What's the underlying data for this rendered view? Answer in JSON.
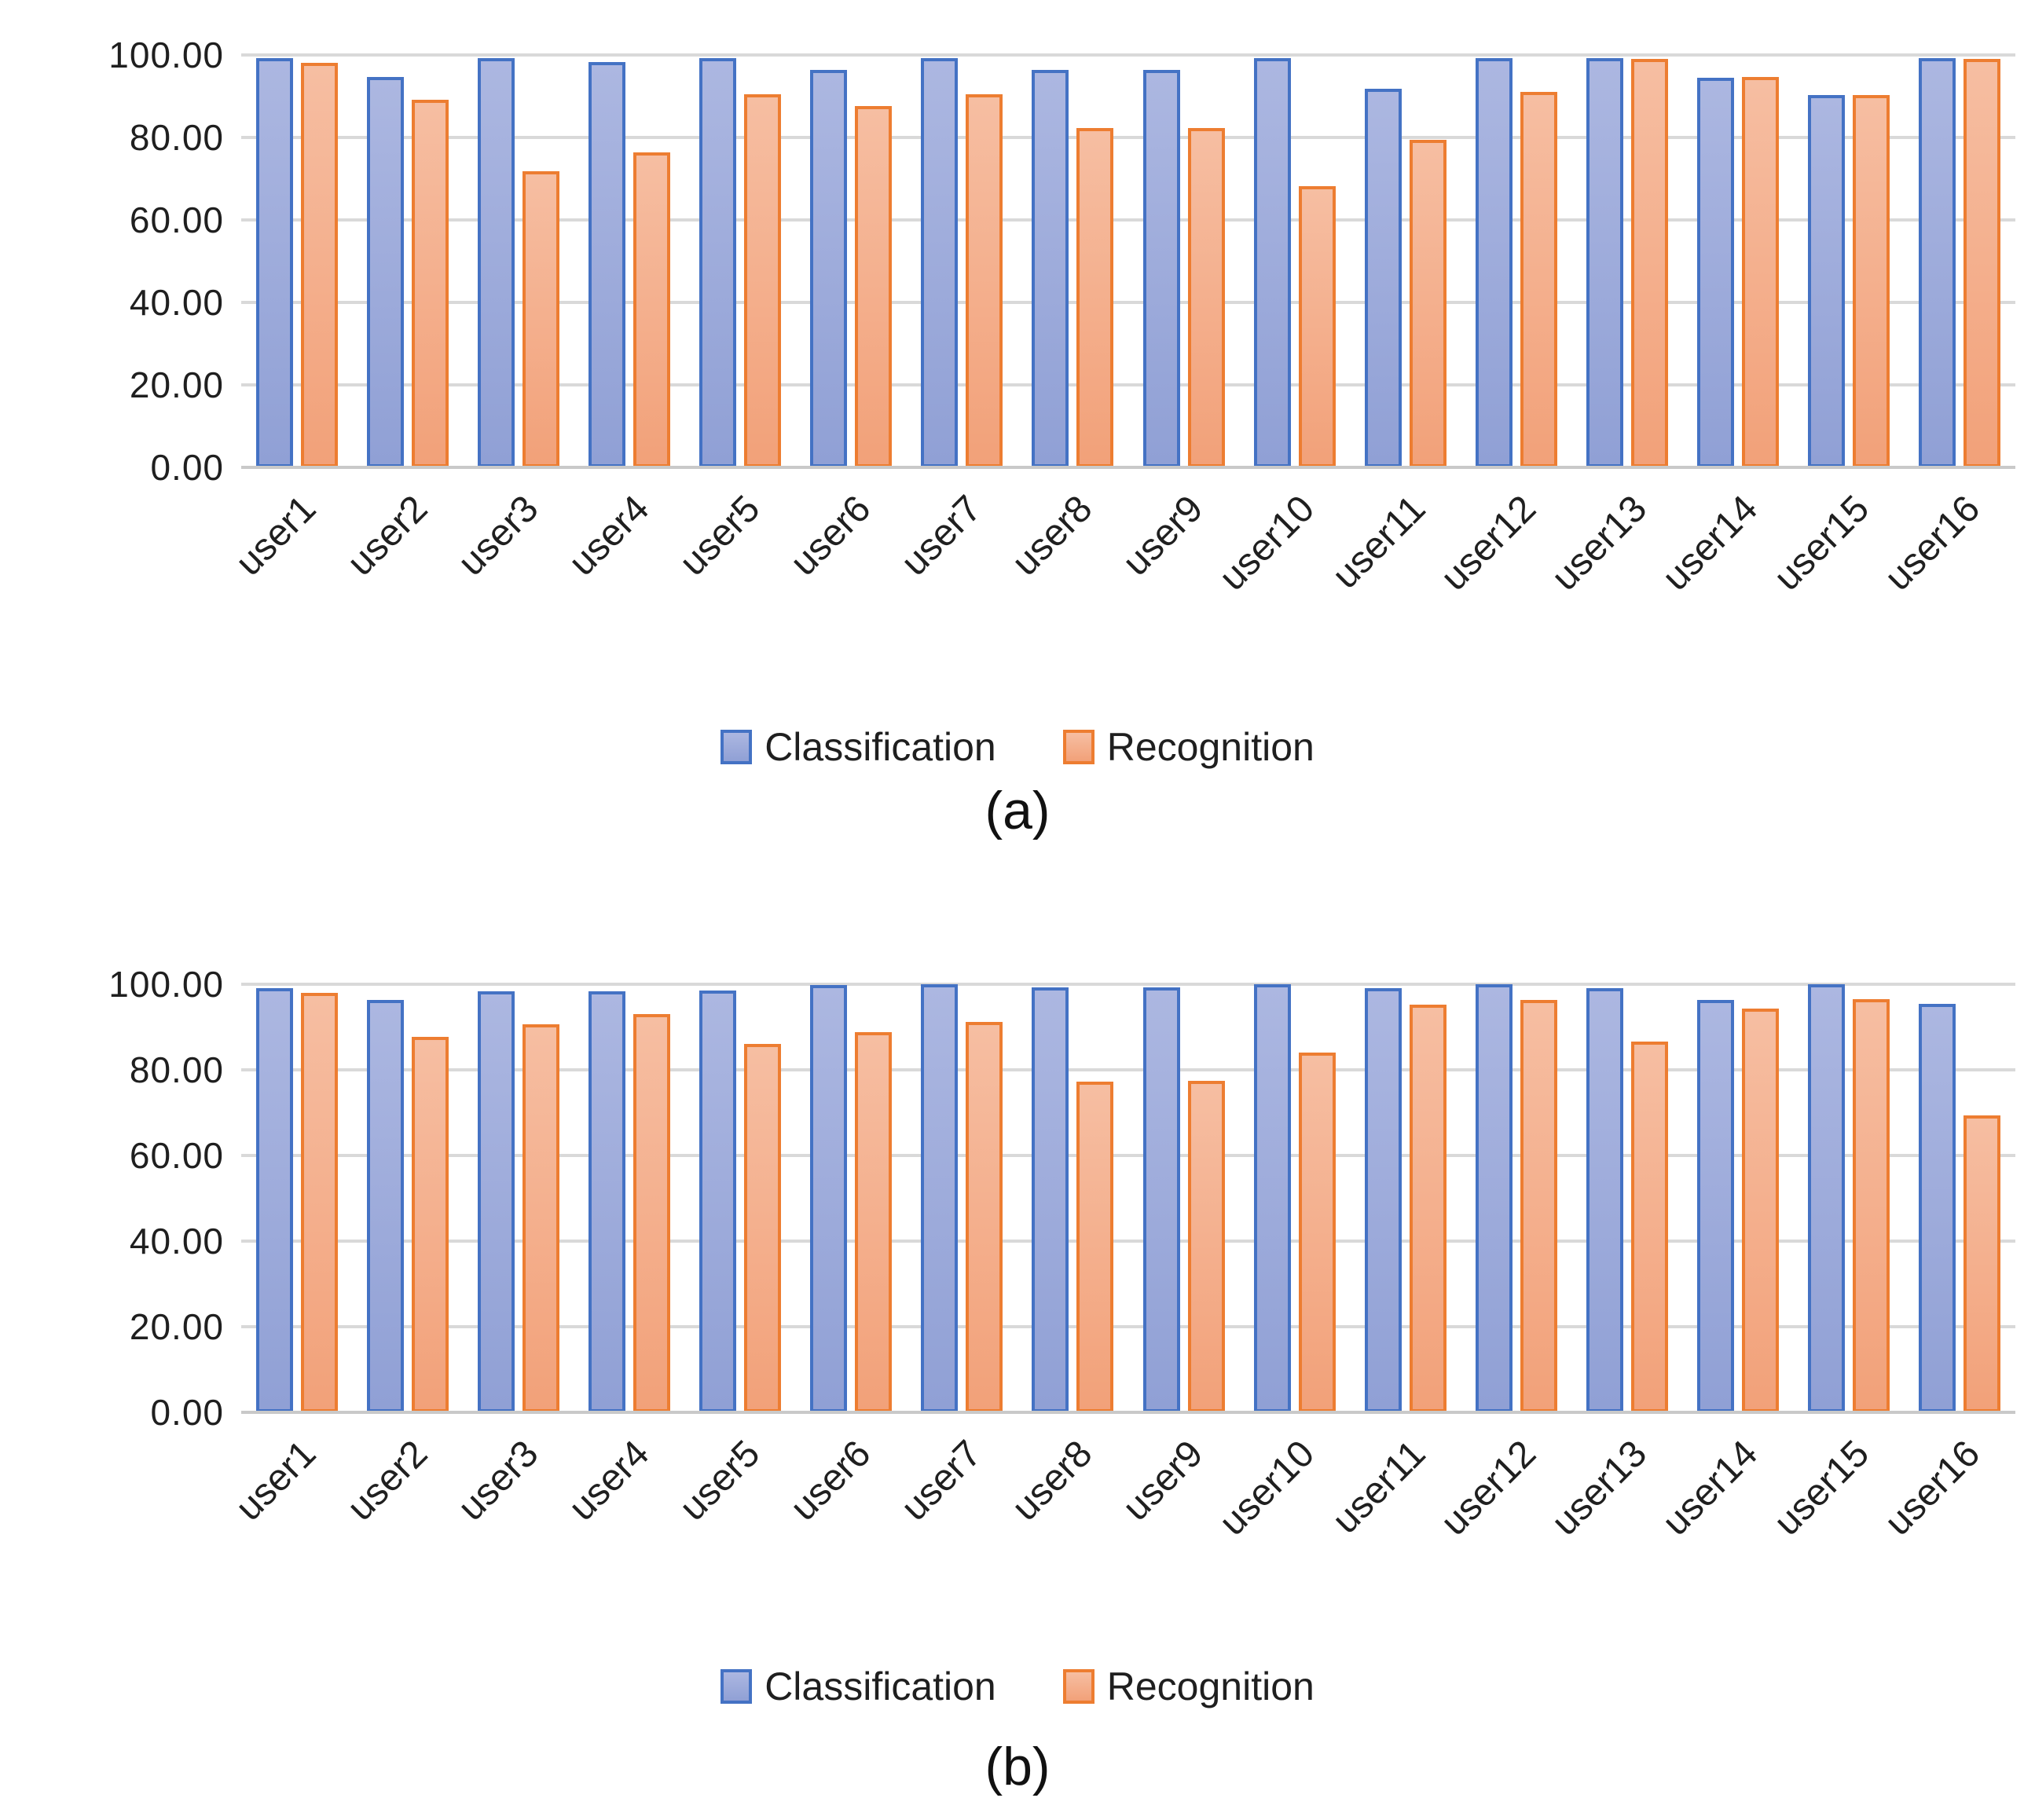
{
  "page": {
    "background": "#ffffff",
    "text_color": "#1f1f1f",
    "gridline_color": "#d9d9d9",
    "axis_line_color": "#c9c9c9"
  },
  "chart_data": [
    {
      "id": "a",
      "type": "bar",
      "caption": "(a)",
      "categories": [
        "user1",
        "user2",
        "user3",
        "user4",
        "user5",
        "user6",
        "user7",
        "user8",
        "user9",
        "user10",
        "user11",
        "user12",
        "user13",
        "user14",
        "user15",
        "user16"
      ],
      "yticks": [
        {
          "label": "100.00",
          "value": 100
        },
        {
          "label": "80.00",
          "value": 80
        },
        {
          "label": "60.00",
          "value": 60
        },
        {
          "label": "40.00",
          "value": 40
        },
        {
          "label": "20.00",
          "value": 20
        },
        {
          "label": "0.00",
          "value": 0
        }
      ],
      "ylim": [
        0,
        100
      ],
      "grid": true,
      "legend_position": "bottom",
      "xlabel": "",
      "ylabel": "",
      "series": [
        {
          "name": "Classification",
          "border": "#4472C4",
          "fill_top": "#ACB7E1",
          "fill_bottom": "#90A0D5",
          "values": [
            99.3,
            94.7,
            99.3,
            98.2,
            99.2,
            96.4,
            99.2,
            96.4,
            96.4,
            99.2,
            91.9,
            99.2,
            99.2,
            94.5,
            90.2,
            99.2
          ]
        },
        {
          "name": "Recognition",
          "border": "#ED7D31",
          "fill_top": "#F6BEA2",
          "fill_bottom": "#F2A179",
          "values": [
            98.1,
            89.2,
            71.9,
            76.3,
            90.4,
            87.7,
            90.4,
            82.3,
            82.3,
            68.1,
            79.4,
            91.1,
            99.0,
            94.7,
            90.3,
            99.0
          ]
        }
      ]
    },
    {
      "id": "b",
      "type": "bar",
      "caption": "(b)",
      "categories": [
        "user1",
        "user2",
        "user3",
        "user4",
        "user5",
        "user6",
        "user7",
        "user8",
        "user9",
        "user10",
        "user11",
        "user12",
        "user13",
        "user14",
        "user15",
        "user16"
      ],
      "yticks": [
        {
          "label": "100.00",
          "value": 100
        },
        {
          "label": "80.00",
          "value": 80
        },
        {
          "label": "60.00",
          "value": 60
        },
        {
          "label": "40.00",
          "value": 40
        },
        {
          "label": "20.00",
          "value": 20
        },
        {
          "label": "0.00",
          "value": 0
        }
      ],
      "ylim": [
        0,
        100
      ],
      "grid": true,
      "legend_position": "bottom",
      "xlabel": "",
      "ylabel": "",
      "series": [
        {
          "name": "Classification",
          "border": "#4472C4",
          "fill_top": "#ACB7E1",
          "fill_bottom": "#90A0D5",
          "values": [
            99.1,
            96.4,
            98.4,
            98.3,
            98.6,
            99.9,
            100.0,
            99.2,
            99.2,
            100.0,
            99.1,
            100.0,
            99.0,
            96.4,
            100.0,
            95.4
          ]
        },
        {
          "name": "Recognition",
          "border": "#ED7D31",
          "fill_top": "#F6BEA2",
          "fill_bottom": "#F2A179",
          "values": [
            97.9,
            87.8,
            90.6,
            93.0,
            86.0,
            88.9,
            91.2,
            77.3,
            77.4,
            84.0,
            95.3,
            96.4,
            86.7,
            94.4,
            96.6,
            69.3
          ]
        }
      ]
    }
  ]
}
